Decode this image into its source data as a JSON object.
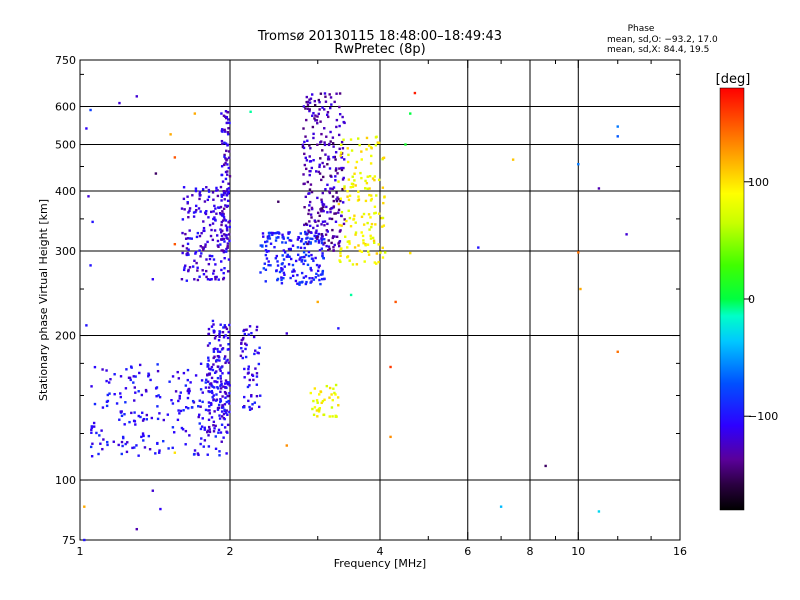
{
  "chart_data": {
    "type": "scatter",
    "title": "Tromsø 20130115 18:48:00–18:49:43",
    "subtitle": "RwPretec (8p)",
    "xlabel": "Frequency [MHz]",
    "ylabel": "Stationary phase Virtual Height [km]",
    "xscale": "log",
    "yscale": "log",
    "xlim": [
      1,
      16
    ],
    "ylim": [
      75,
      750
    ],
    "x_ticks": [
      1,
      2,
      4,
      6,
      8,
      10,
      16
    ],
    "x_tick_labels": [
      "1",
      "2",
      "4",
      "6",
      "8",
      "10",
      "16"
    ],
    "x_minor_ticks": [
      3,
      5,
      7,
      9,
      12,
      14
    ],
    "y_ticks": [
      75,
      100,
      200,
      300,
      400,
      500,
      600,
      750
    ],
    "y_tick_labels": [
      "75",
      "100",
      "200",
      "300",
      "400",
      "500",
      "600",
      "750"
    ],
    "y_minor_ticks": [
      125,
      150,
      175,
      250,
      350,
      450,
      700
    ],
    "x_gridlines": [
      2,
      4,
      6,
      8,
      10
    ],
    "y_gridlines": [
      100,
      200,
      300,
      400,
      500,
      600
    ],
    "grid": true,
    "stats": {
      "heading": "Phase",
      "line1": "mean, sd,O: −93.2, 17.0",
      "line2": "mean, sd,X:  84.4, 19.5"
    },
    "colorbar": {
      "label": "[deg]",
      "min": -180,
      "max": 180,
      "ticks": [
        100,
        0,
        -100
      ],
      "tick_labels": [
        "100",
        "0",
        "−100"
      ]
    },
    "point_groups": [
      {
        "name": "o-trace-low-f",
        "phase": -105,
        "f_range": [
          1.05,
          2.0
        ],
        "h_range": [
          112,
          175
        ],
        "n": 240
      },
      {
        "name": "o-trace-low-2mhz",
        "phase": -110,
        "f_range": [
          1.8,
          2.0
        ],
        "h_range": [
          125,
          215
        ],
        "n": 160
      },
      {
        "name": "o-trace-low-2.3mhz",
        "phase": -110,
        "f_range": [
          2.1,
          2.3
        ],
        "h_range": [
          140,
          210
        ],
        "n": 60
      },
      {
        "name": "o-trace-f1",
        "phase": -115,
        "f_range": [
          1.6,
          2.0
        ],
        "h_range": [
          260,
          410
        ],
        "n": 180
      },
      {
        "name": "o-trace-2mhz-column",
        "phase": -120,
        "f_range": [
          1.92,
          2.0
        ],
        "h_range": [
          300,
          590
        ],
        "n": 90
      },
      {
        "name": "o-trace-f2-lower",
        "phase": -95,
        "f_range": [
          2.3,
          3.1
        ],
        "h_range": [
          255,
          330
        ],
        "n": 200
      },
      {
        "name": "o-trace-f2-upper",
        "phase": -130,
        "f_range": [
          2.8,
          3.4
        ],
        "h_range": [
          300,
          640
        ],
        "n": 260
      },
      {
        "name": "x-trace-f2",
        "phase": 90,
        "f_range": [
          3.3,
          4.1
        ],
        "h_range": [
          280,
          520
        ],
        "n": 150
      },
      {
        "name": "x-trace-low",
        "phase": 85,
        "f_range": [
          2.9,
          3.3
        ],
        "h_range": [
          135,
          160
        ],
        "n": 40
      }
    ],
    "scatter_points": [
      {
        "x": 1.05,
        "y": 590,
        "phase": -80
      },
      {
        "x": 1.2,
        "y": 610,
        "phase": -120
      },
      {
        "x": 1.52,
        "y": 525,
        "phase": 120
      },
      {
        "x": 1.55,
        "y": 470,
        "phase": 150
      },
      {
        "x": 4.7,
        "y": 640,
        "phase": 170
      },
      {
        "x": 4.6,
        "y": 580,
        "phase": 0
      },
      {
        "x": 4.5,
        "y": 500,
        "phase": 10
      },
      {
        "x": 6.3,
        "y": 305,
        "phase": -100
      },
      {
        "x": 7.4,
        "y": 465,
        "phase": 110
      },
      {
        "x": 8.6,
        "y": 107,
        "phase": -150
      },
      {
        "x": 7.0,
        "y": 88,
        "phase": -40
      },
      {
        "x": 10.0,
        "y": 455,
        "phase": -60
      },
      {
        "x": 10.1,
        "y": 250,
        "phase": 120
      },
      {
        "x": 10.0,
        "y": 298,
        "phase": 140
      },
      {
        "x": 11.0,
        "y": 405,
        "phase": -130
      },
      {
        "x": 11.0,
        "y": 86,
        "phase": -30
      },
      {
        "x": 12.0,
        "y": 545,
        "phase": -60
      },
      {
        "x": 12.0,
        "y": 520,
        "phase": -70
      },
      {
        "x": 12.5,
        "y": 325,
        "phase": -120
      },
      {
        "x": 12.0,
        "y": 185,
        "phase": 140
      },
      {
        "x": 4.3,
        "y": 235,
        "phase": 150
      },
      {
        "x": 4.2,
        "y": 172,
        "phase": 160
      },
      {
        "x": 4.2,
        "y": 123,
        "phase": 130
      },
      {
        "x": 4.6,
        "y": 297,
        "phase": 100
      },
      {
        "x": 2.6,
        "y": 202,
        "phase": -120
      },
      {
        "x": 3.0,
        "y": 235,
        "phase": 120
      },
      {
        "x": 3.5,
        "y": 243,
        "phase": -10
      },
      {
        "x": 3.3,
        "y": 207,
        "phase": -100
      },
      {
        "x": 2.5,
        "y": 380,
        "phase": -150
      },
      {
        "x": 1.7,
        "y": 580,
        "phase": 120
      },
      {
        "x": 2.2,
        "y": 585,
        "phase": -10
      },
      {
        "x": 1.4,
        "y": 95,
        "phase": -120
      },
      {
        "x": 1.45,
        "y": 87,
        "phase": -110
      },
      {
        "x": 1.3,
        "y": 79,
        "phase": -130
      },
      {
        "x": 1.55,
        "y": 310,
        "phase": 150
      },
      {
        "x": 1.55,
        "y": 114,
        "phase": 100
      },
      {
        "x": 2.6,
        "y": 118,
        "phase": 130
      },
      {
        "x": 1.02,
        "y": 75,
        "phase": -100
      },
      {
        "x": 1.02,
        "y": 88,
        "phase": 120
      },
      {
        "x": 1.03,
        "y": 540,
        "phase": -110
      },
      {
        "x": 1.04,
        "y": 390,
        "phase": -120
      },
      {
        "x": 1.05,
        "y": 280,
        "phase": -100
      },
      {
        "x": 1.03,
        "y": 210,
        "phase": -100
      },
      {
        "x": 1.06,
        "y": 345,
        "phase": -100
      },
      {
        "x": 1.42,
        "y": 435,
        "phase": -150
      },
      {
        "x": 1.4,
        "y": 262,
        "phase": -110
      },
      {
        "x": 1.3,
        "y": 630,
        "phase": -120
      }
    ]
  }
}
